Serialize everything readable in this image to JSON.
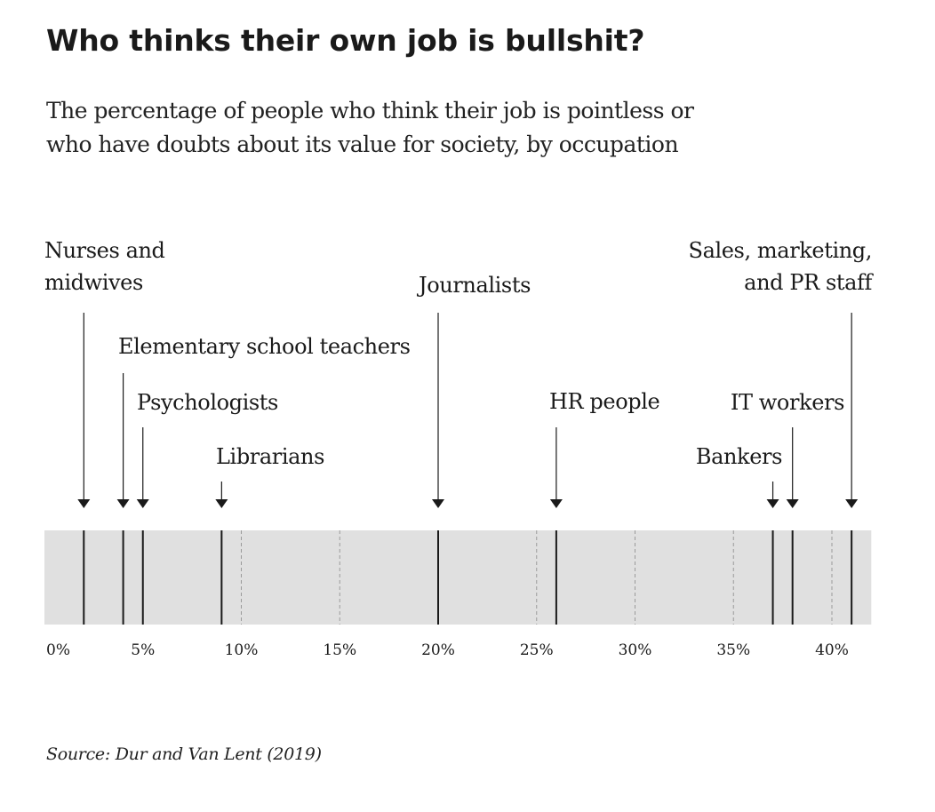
{
  "title": "Who thinks their own job is bullshit?",
  "subtitle": [
    "The percentage of people who think their job is pointless or",
    "who have doubts about its value for society, by occupation"
  ],
  "source": "Source: Dur and Van Lent (2019)",
  "colors": {
    "band": "#e0e0e0",
    "marker": "#1a1a1a",
    "gridline": "#9a9a9a",
    "text": "#1a1a1a"
  },
  "chart_data": {
    "type": "strip",
    "title": "Who thinks their own job is bullshit?",
    "xlabel": "",
    "ylabel": "",
    "xlim": [
      0,
      42
    ],
    "ticks": [
      0,
      5,
      10,
      15,
      20,
      25,
      30,
      35,
      40
    ],
    "tick_labels": [
      "0%",
      "5%",
      "10%",
      "15%",
      "20%",
      "25%",
      "30%",
      "35%",
      "40%"
    ],
    "points": [
      {
        "label": [
          "Nurses and",
          "midwives"
        ],
        "value": 2,
        "align": "left"
      },
      {
        "label": [
          "Elementary school teachers"
        ],
        "value": 4,
        "align": "left"
      },
      {
        "label": [
          "Psychologists"
        ],
        "value": 5,
        "align": "left"
      },
      {
        "label": [
          "Librarians"
        ],
        "value": 9,
        "align": "left"
      },
      {
        "label": [
          "Journalists"
        ],
        "value": 20,
        "align": "left"
      },
      {
        "label": [
          "HR people"
        ],
        "value": 26,
        "align": "left"
      },
      {
        "label": [
          "Bankers"
        ],
        "value": 37,
        "align": "right"
      },
      {
        "label": [
          "IT workers"
        ],
        "value": 38,
        "align": "right"
      },
      {
        "label": [
          "Sales, marketing,",
          "and PR staff"
        ],
        "value": 41,
        "align": "right"
      }
    ]
  }
}
